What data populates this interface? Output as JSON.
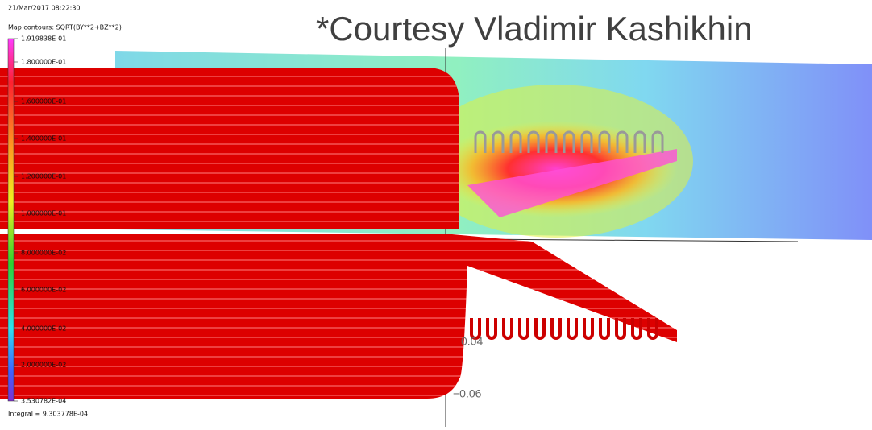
{
  "header": {
    "timestamp": "21/Mar/2017 08:22:30",
    "title": "*Courtesy Vladimir Kashikhin"
  },
  "legend": {
    "title": "Map contours: SQRT(BY**2+BZ**2)",
    "labels": [
      "1.919838E-01",
      "1.800000E-01",
      "1.600000E-01",
      "1.400000E-01",
      "1.200000E-01",
      "1.000000E-01",
      "8.000000E-02",
      "6.000000E-02",
      "4.000000E-02",
      "2.000000E-02",
      "3.530782E-04"
    ],
    "integral": "Integral = 9.303778E-04"
  },
  "axis": {
    "labels": [
      "0.04",
      "−0.06"
    ]
  }
}
